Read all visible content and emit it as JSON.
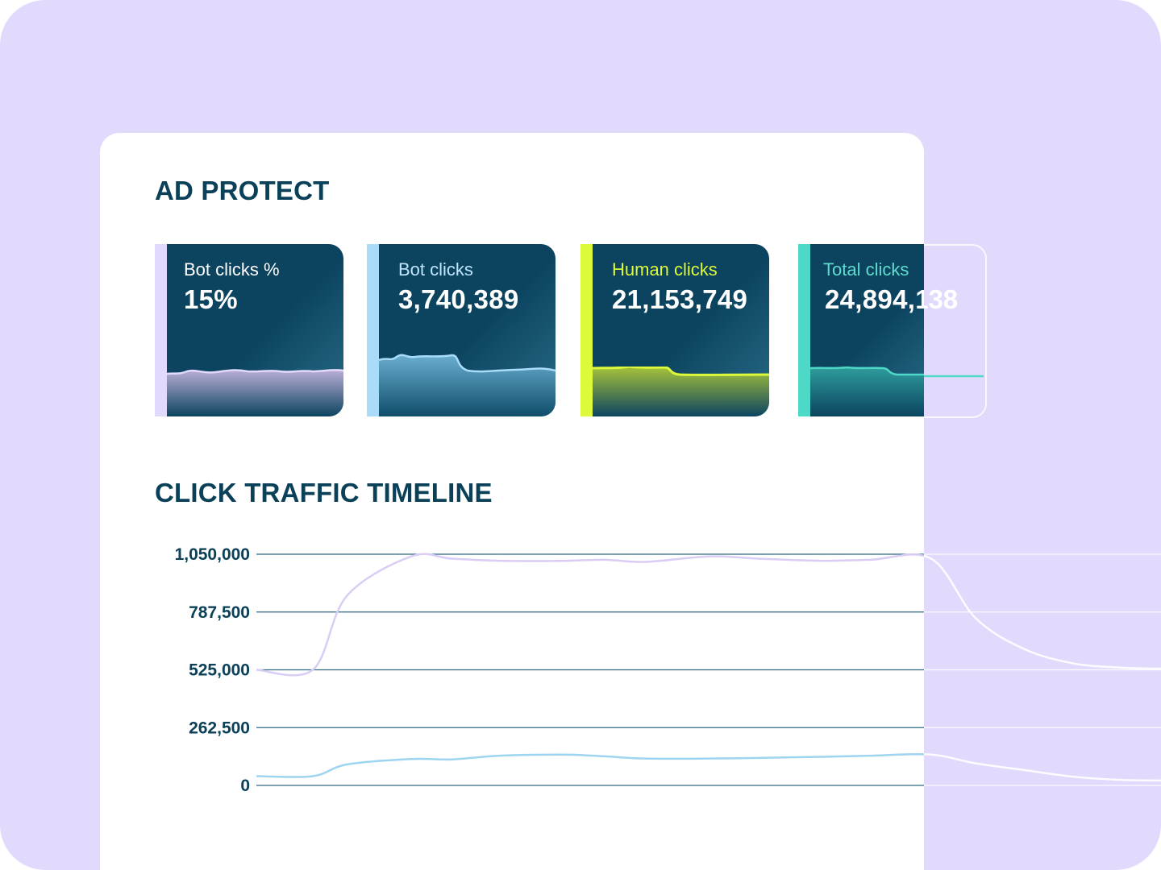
{
  "header": {
    "title": "AD PROTECT"
  },
  "cards": [
    {
      "label": "Bot clicks %",
      "value": "15%",
      "stripe": "#e2dafd",
      "label_color": "#ffffff",
      "line": "#d9ccf5"
    },
    {
      "label": "Bot clicks",
      "value": "3,740,389",
      "stripe": "#a8dcf8",
      "label_color": "#bfe6fb",
      "line": "#9fd4f0"
    },
    {
      "label": "Human clicks",
      "value": "21,153,749",
      "stripe": "#ddf93a",
      "label_color": "#ddf93a",
      "line": "#ddf93a"
    },
    {
      "label": "Total clicks",
      "value": "24,894,138",
      "stripe": "#4ed8c8",
      "label_color": "#5fdccf",
      "line": "#4ed8c8"
    }
  ],
  "timeline": {
    "title": "CLICK TRAFFIC TIMELINE"
  },
  "chart_data": {
    "type": "line",
    "title": "CLICK TRAFFIC TIMELINE",
    "xlabel": "",
    "ylabel": "",
    "ylim": [
      0,
      1050000
    ],
    "yticks": [
      "1,050,000",
      "787,500",
      "525,000",
      "262,500",
      "0"
    ],
    "grid": true,
    "legend": "none",
    "series": [
      {
        "color": "#d9ccf5",
        "values": [
          525000,
          525000,
          860000,
          1040000,
          1030000,
          1020000,
          1020000,
          1025000,
          1015000,
          1040000,
          1030000,
          1020000,
          1025000,
          1030000,
          760000,
          620000,
          555000,
          535000,
          530000
        ]
      },
      {
        "color": "#9fd4f0",
        "values": [
          42000,
          42000,
          95000,
          120000,
          118000,
          135000,
          140000,
          132000,
          122000,
          122000,
          125000,
          130000,
          135000,
          140000,
          100000,
          70000,
          40000,
          25000,
          22000
        ]
      }
    ]
  }
}
